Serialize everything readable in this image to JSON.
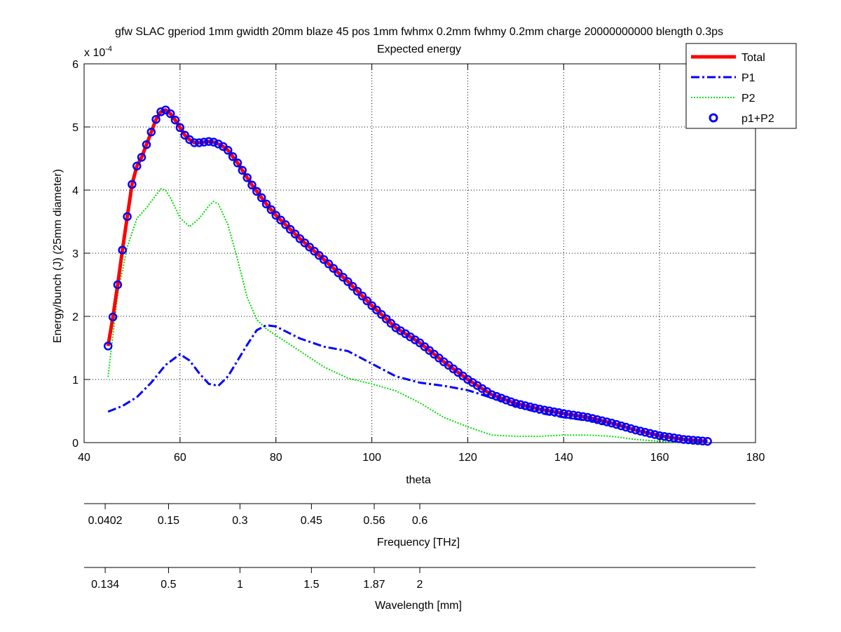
{
  "chart_data": {
    "type": "line",
    "title": "gfw SLAC gperiod 1mm gwidth 20mm blaze 45 pos 1mm fwhmx 0.2mm fwhmy 0.2mm charge 20000000000 blength 0.3ps",
    "subtitle": "Expected energy",
    "xlabel": "theta",
    "ylabel": "Energy/bunch (J) (25mm diameter)",
    "y_exponent_label": "x 10",
    "y_exponent_power": "-4",
    "xlim": [
      40,
      180
    ],
    "ylim": [
      0,
      6
    ],
    "x_ticks": [
      "40",
      "60",
      "80",
      "100",
      "120",
      "140",
      "160",
      "180"
    ],
    "y_ticks": [
      "0",
      "1",
      "2",
      "3",
      "4",
      "5",
      "6"
    ],
    "grid": true,
    "legend_position": "top-right",
    "series": [
      {
        "name": "Total",
        "color": "#ff0000",
        "style": "solid",
        "x": [
          45,
          46,
          47,
          48,
          49,
          50,
          51,
          52,
          53,
          54,
          55,
          56,
          57,
          58,
          59,
          60,
          61,
          62,
          63,
          64,
          65,
          66,
          67,
          68,
          69,
          70,
          72,
          75,
          78,
          80,
          85,
          90,
          95,
          100,
          105,
          110,
          115,
          120,
          125,
          130,
          135,
          140,
          145,
          150,
          155,
          160,
          165,
          170
        ],
        "values": [
          1.53,
          1.99,
          2.5,
          3.05,
          3.58,
          4.09,
          4.38,
          4.52,
          4.72,
          4.92,
          5.12,
          5.24,
          5.27,
          5.21,
          5.11,
          4.99,
          4.87,
          4.8,
          4.75,
          4.75,
          4.76,
          4.77,
          4.76,
          4.73,
          4.69,
          4.63,
          4.43,
          4.08,
          3.78,
          3.6,
          3.23,
          2.9,
          2.55,
          2.17,
          1.82,
          1.58,
          1.28,
          1.0,
          0.76,
          0.62,
          0.53,
          0.46,
          0.4,
          0.31,
          0.2,
          0.11,
          0.05,
          0.02
        ]
      },
      {
        "name": "P1",
        "color": "#0000ff",
        "style": "dashdot",
        "x": [
          45,
          48,
          51,
          54,
          57,
          60,
          62,
          64,
          66,
          68,
          70,
          72,
          74,
          76,
          78,
          80,
          85,
          90,
          95,
          100,
          105,
          110,
          115,
          120,
          125,
          130,
          135,
          140,
          145,
          150,
          155,
          160,
          165,
          170
        ],
        "values": [
          0.49,
          0.58,
          0.72,
          0.95,
          1.23,
          1.4,
          1.3,
          1.1,
          0.93,
          0.9,
          1.05,
          1.3,
          1.55,
          1.78,
          1.86,
          1.84,
          1.65,
          1.52,
          1.45,
          1.25,
          1.05,
          0.95,
          0.9,
          0.83,
          0.71,
          0.58,
          0.47,
          0.4,
          0.35,
          0.3,
          0.2,
          0.11,
          0.05,
          0.02
        ]
      },
      {
        "name": "P2",
        "color": "#00dd00",
        "style": "dotted",
        "x": [
          45,
          47,
          49,
          51,
          53,
          55,
          56,
          57,
          58,
          60,
          62,
          64,
          66,
          67,
          68,
          70,
          72,
          74,
          76,
          78,
          80,
          85,
          90,
          95,
          100,
          105,
          110,
          115,
          120,
          125,
          130,
          135,
          140,
          145,
          150,
          155,
          160,
          165,
          170
        ],
        "values": [
          1.04,
          2.35,
          3.1,
          3.55,
          3.72,
          3.92,
          4.02,
          4.0,
          3.88,
          3.56,
          3.42,
          3.55,
          3.75,
          3.82,
          3.78,
          3.45,
          2.9,
          2.3,
          1.95,
          1.8,
          1.7,
          1.45,
          1.2,
          1.02,
          0.93,
          0.82,
          0.63,
          0.4,
          0.25,
          0.12,
          0.1,
          0.1,
          0.12,
          0.12,
          0.1,
          0.05,
          0.02,
          0.0,
          0.0
        ]
      },
      {
        "name": "p1+P2",
        "color": "#0000ff",
        "style": "circles"
      }
    ],
    "secondary_axes": [
      {
        "label": "Frequency [THz]",
        "tick_labels": [
          "0.0402",
          "0.15",
          "0.3",
          "0.45",
          "0.56",
          "0.6"
        ],
        "tick_theta": [
          44.4,
          57.6,
          72.5,
          87.4,
          100.5,
          110.0
        ]
      },
      {
        "label": "Wavelength [mm]",
        "tick_labels": [
          "0.134",
          "0.5",
          "1",
          "1.5",
          "1.87",
          "2"
        ],
        "tick_theta": [
          44.4,
          57.6,
          72.5,
          87.4,
          100.5,
          110.0
        ]
      }
    ]
  }
}
